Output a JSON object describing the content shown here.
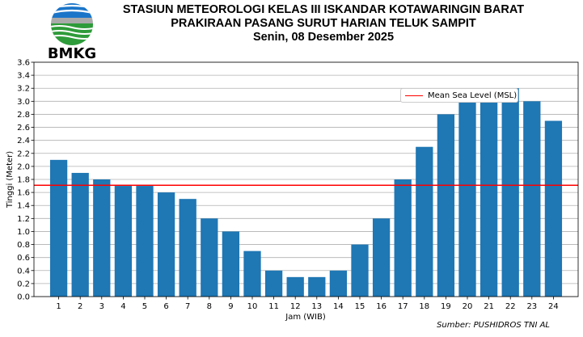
{
  "header": {
    "logo_text": "BMKG",
    "title_line1": "STASIUN METEOROLOGI KELAS III ISKANDAR KOTAWARINGIN BARAT",
    "title_line2": "PRAKIRAAN PASANG SURUT HARIAN TELUK SAMPIT",
    "title_line3": "Senin, 08 Desember 2025"
  },
  "source": "Sumber: PUSHIDROS TNI AL",
  "colors": {
    "bar": "#1f77b4",
    "msl_line": "#ff0000",
    "grid": "#b0b0b0"
  },
  "chart_data": {
    "type": "bar",
    "title": "PRAKIRAAN PASANG SURUT HARIAN TELUK SAMPIT",
    "xlabel": "Jam (WIB)",
    "ylabel": "Tinggi (Meter)",
    "categories": [
      "1",
      "2",
      "3",
      "4",
      "5",
      "6",
      "7",
      "8",
      "9",
      "10",
      "11",
      "12",
      "13",
      "14",
      "15",
      "16",
      "17",
      "18",
      "19",
      "20",
      "21",
      "22",
      "23",
      "24"
    ],
    "values": [
      2.1,
      1.9,
      1.8,
      1.7,
      1.7,
      1.6,
      1.5,
      1.2,
      1.0,
      0.7,
      0.4,
      0.3,
      0.3,
      0.4,
      0.8,
      1.2,
      1.8,
      2.3,
      2.8,
      3.0,
      3.2,
      3.2,
      3.0,
      2.7
    ],
    "ylim": [
      0,
      3.6
    ],
    "yticks": [
      "0.0",
      "0.2",
      "0.4",
      "0.6",
      "0.8",
      "1.0",
      "1.2",
      "1.4",
      "1.6",
      "1.8",
      "2.0",
      "2.2",
      "2.4",
      "2.6",
      "2.8",
      "3.0",
      "3.2",
      "3.4",
      "3.6"
    ],
    "reference_line": {
      "name": "Mean Sea Level (MSL)",
      "value": 1.71
    },
    "grid": "horizontal",
    "legend_position": "upper-right"
  }
}
